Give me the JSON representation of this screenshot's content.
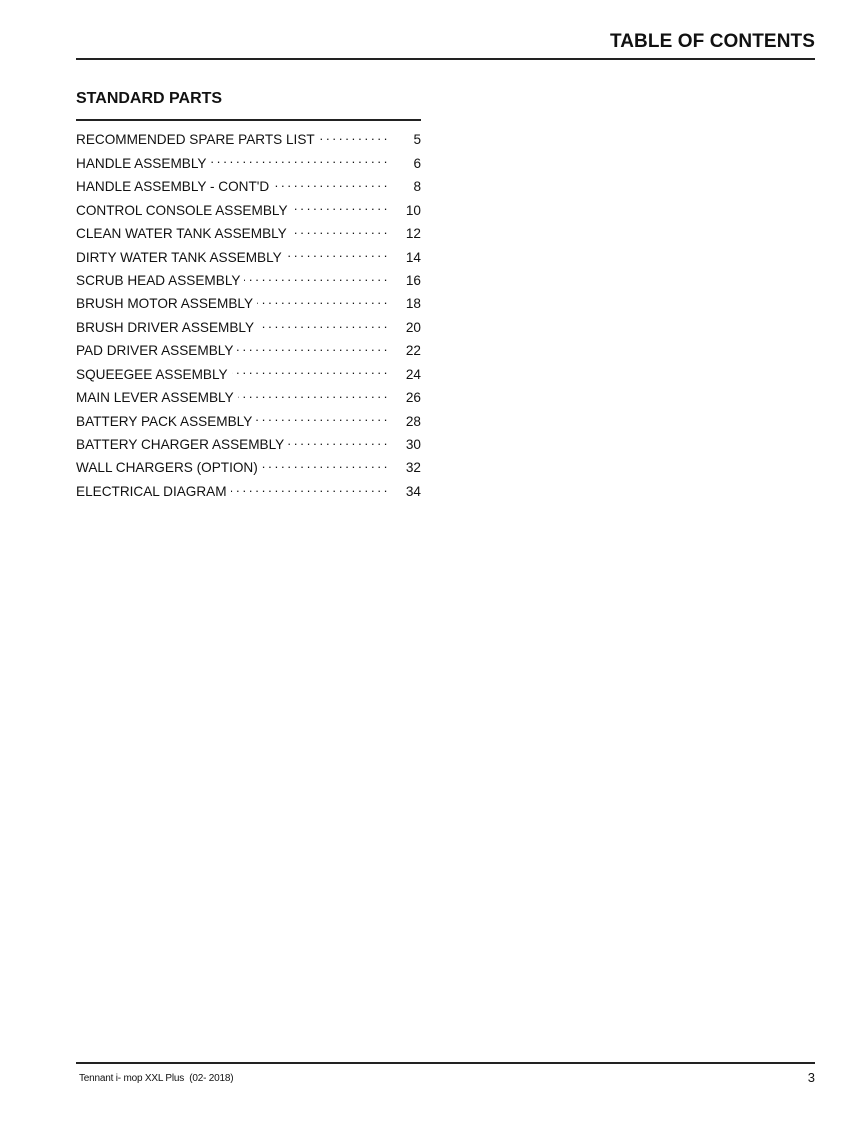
{
  "header": {
    "title": "TABLE OF CONTENTS"
  },
  "section": {
    "title": "STANDARD PARTS",
    "entries": [
      {
        "label": "RECOMMENDED SPARE PARTS LIST",
        "page": "5"
      },
      {
        "label": "HANDLE ASSEMBLY",
        "page": "6"
      },
      {
        "label": "HANDLE ASSEMBLY - CONT'D",
        "page": "8"
      },
      {
        "label": "CONTROL CONSOLE ASSEMBLY",
        "page": "10"
      },
      {
        "label": "CLEAN WATER TANK ASSEMBLY",
        "page": "12"
      },
      {
        "label": "DIRTY WATER TANK ASSEMBLY",
        "page": "14"
      },
      {
        "label": "SCRUB HEAD ASSEMBLY",
        "page": "16"
      },
      {
        "label": "BRUSH MOTOR ASSEMBLY",
        "page": "18"
      },
      {
        "label": "BRUSH DRIVER ASSEMBLY",
        "page": "20"
      },
      {
        "label": "PAD DRIVER ASSEMBLY",
        "page": "22"
      },
      {
        "label": "SQUEEGEE ASSEMBLY",
        "page": "24"
      },
      {
        "label": "MAIN LEVER ASSEMBLY",
        "page": "26"
      },
      {
        "label": "BATTERY PACK ASSEMBLY",
        "page": "28"
      },
      {
        "label": "BATTERY CHARGER ASSEMBLY",
        "page": "30"
      },
      {
        "label": "WALL CHARGERS (OPTION)",
        "page": "32"
      },
      {
        "label": "ELECTRICAL DIAGRAM",
        "page": "34"
      }
    ]
  },
  "footer": {
    "text": "Tennant i- mop XXL Plus  (02- 2018)",
    "page_number": "3"
  }
}
